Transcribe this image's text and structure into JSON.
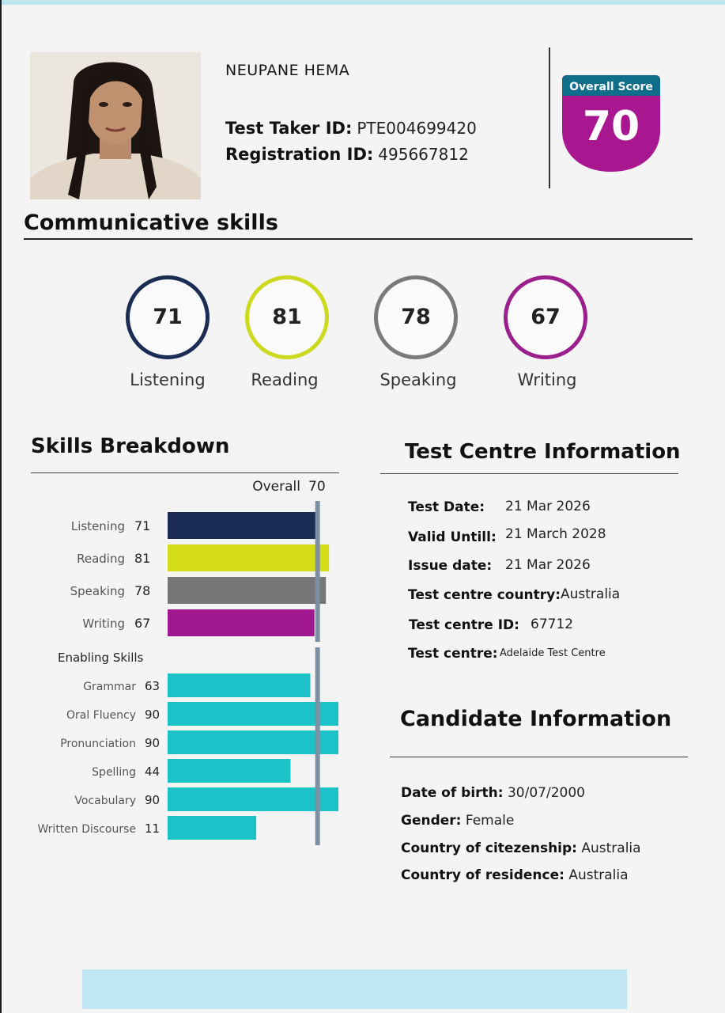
{
  "header": {
    "name": "NEUPANE HEMA",
    "test_taker_label": "Test Taker ID:",
    "test_taker_id": "PTE004699420",
    "registration_label": "Registration ID:",
    "registration_id": "495667812"
  },
  "overall": {
    "label": "Overall Score",
    "score": "70",
    "color": "#a8178f"
  },
  "communicative": {
    "title": "Communicative skills",
    "skills": [
      {
        "name": "Listening",
        "score": "71",
        "color": "#1b2c55"
      },
      {
        "name": "Reading",
        "score": "81",
        "color": "#cdd91f"
      },
      {
        "name": "Speaking",
        "score": "78",
        "color": "#7a7a7a"
      },
      {
        "name": "Writing",
        "score": "67",
        "color": "#9b1f8c"
      }
    ]
  },
  "breakdown": {
    "title": "Skills Breakdown",
    "overall_label": "Overall",
    "overall_value": "70",
    "enabling_title": "Enabling Skills"
  },
  "chart_data": {
    "type": "bar",
    "orientation": "horizontal",
    "overall": 70,
    "xlim": [
      10,
      90
    ],
    "communicative": {
      "categories": [
        "Listening",
        "Reading",
        "Speaking",
        "Writing"
      ],
      "values": [
        71,
        81,
        78,
        67
      ],
      "colors": [
        "#1b2c55",
        "#d4dc18",
        "#767676",
        "#a0198e"
      ]
    },
    "enabling": {
      "categories": [
        "Grammar",
        "Oral Fluency",
        "Pronunciation",
        "Spelling",
        "Vocabulary",
        "Written Discourse"
      ],
      "values": [
        63,
        90,
        90,
        44,
        90,
        11
      ],
      "color": "#1bc3c8"
    }
  },
  "test_centre": {
    "title": "Test Centre Information",
    "rows": [
      {
        "label": "Test Date:",
        "value": "21 Mar 2026"
      },
      {
        "label": "Valid Untill:",
        "value": "21 March 2028"
      },
      {
        "label": "Issue date:",
        "value": "21 Mar 2026"
      },
      {
        "label": "Test centre country:",
        "value": "Australia"
      },
      {
        "label": "Test centre ID:",
        "value": "67712"
      },
      {
        "label": "Test centre:",
        "value": "Adelaide Test Centre"
      }
    ]
  },
  "candidate": {
    "title": "Candidate Information",
    "rows": [
      {
        "label": "Date of birth:",
        "value": "30/07/2000"
      },
      {
        "label": "Gender:",
        "value": "Female"
      },
      {
        "label": "Country of citezenship:",
        "value": "Australia"
      },
      {
        "label": "Country of residence:",
        "value": "Australia"
      }
    ]
  }
}
